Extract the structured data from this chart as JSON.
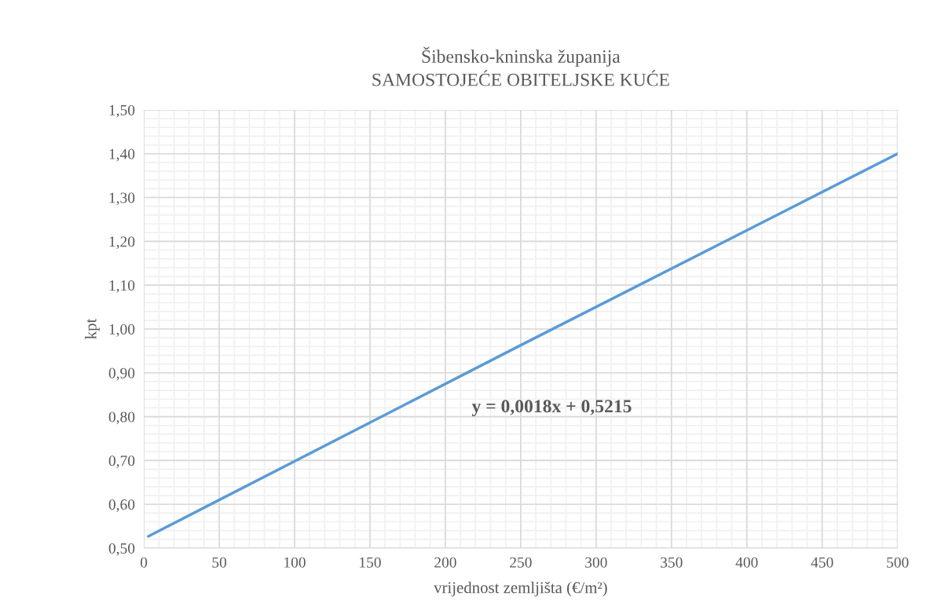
{
  "chart_data": {
    "type": "line",
    "title": "Šibensko-kninska županija\nSAMOSTOJEĆE OBITELJSKE KUĆE",
    "xlabel": "vrijednost zemljišta (€/m²)",
    "ylabel": "kpt",
    "x": [
      3,
      250,
      500
    ],
    "series": [
      {
        "color": "#5b9bd5",
        "values": [
          0.527,
          0.963,
          1.4
        ]
      }
    ],
    "xlim": [
      0,
      500
    ],
    "xticks": [
      0,
      50,
      100,
      150,
      200,
      250,
      300,
      350,
      400,
      450,
      500
    ],
    "ylim": [
      0.5,
      1.5
    ],
    "yticks": [
      {
        "value": 0.5,
        "label": "0,50"
      },
      {
        "value": 0.6,
        "label": "0,60"
      },
      {
        "value": 0.7,
        "label": "0,70"
      },
      {
        "value": 0.8,
        "label": "0,80"
      },
      {
        "value": 0.9,
        "label": "0,90"
      },
      {
        "value": 1.0,
        "label": "1,00"
      },
      {
        "value": 1.1,
        "label": "1,10"
      },
      {
        "value": 1.2,
        "label": "1,20"
      },
      {
        "value": 1.3,
        "label": "1,30"
      },
      {
        "value": 1.4,
        "label": "1,40"
      },
      {
        "value": 1.5,
        "label": "1,50"
      }
    ],
    "grid": true,
    "marker": "none",
    "line_style": "solid",
    "annotations": [
      "y = 0,0018x + 0,5215"
    ]
  }
}
